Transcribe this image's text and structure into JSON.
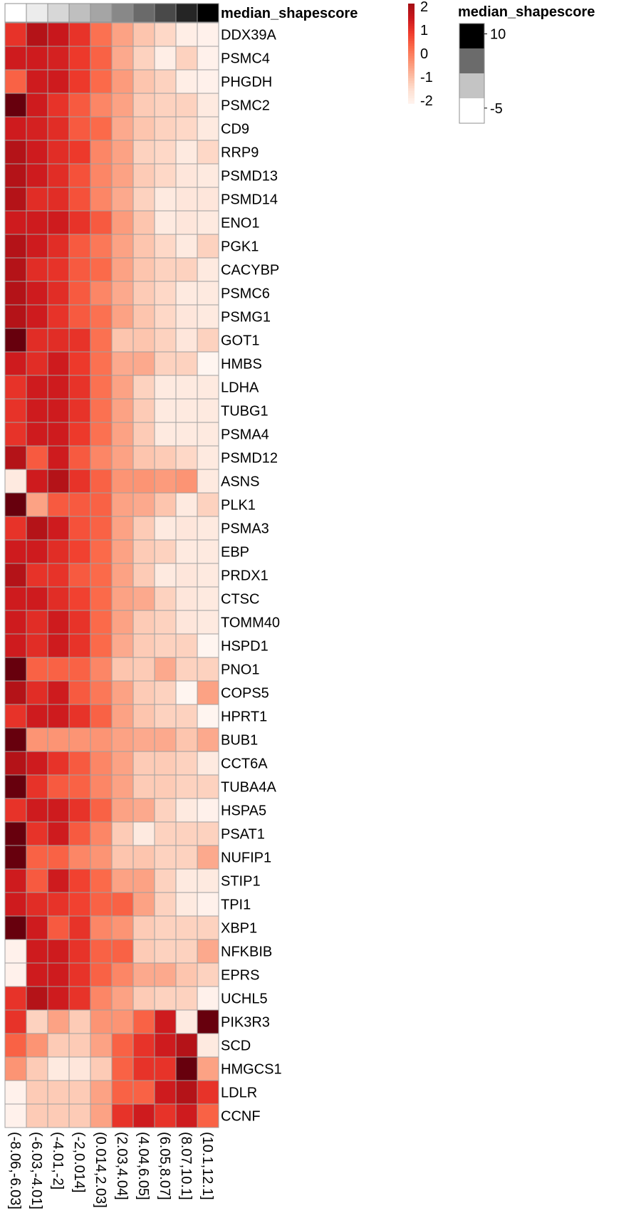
{
  "chart_data": {
    "type": "heatmap",
    "title": "",
    "xlabel": "",
    "ylabel": "",
    "columns": [
      "(-8.06,-6.03]",
      "(-6.03,-4.01]",
      "(-4.01,-2]",
      "(-2,0.014]",
      "(0.014,2.03]",
      "(2.03,4.04]",
      "(4.04,6.05]",
      "(6.05,8.07]",
      "(8.07,10.1]",
      "(10.1,12.1]"
    ],
    "rows": [
      "DDX39A",
      "PSMC4",
      "PHGDH",
      "PSMC2",
      "CD9",
      "RRP9",
      "PSMD13",
      "PSMD14",
      "ENO1",
      "PGK1",
      "CACYBP",
      "PSMC6",
      "PSMG1",
      "GOT1",
      "HMBS",
      "LDHA",
      "TUBG1",
      "PSMA4",
      "PSMD12",
      "ASNS",
      "PLK1",
      "PSMA3",
      "EBP",
      "PRDX1",
      "CTSC",
      "TOMM40",
      "HSPD1",
      "PNO1",
      "COPS5",
      "HPRT1",
      "BUB1",
      "CCT6A",
      "TUBA4A",
      "HSPA5",
      "PSAT1",
      "NUFIP1",
      "STIP1",
      "TPI1",
      "XBP1",
      "NFKBIB",
      "EPRS",
      "UCHL5",
      "PIK3R3",
      "SCD",
      "HMGCS1",
      "LDLR",
      "CCNF"
    ],
    "values": [
      [
        1.0,
        1.8,
        1.5,
        1.0,
        0.2,
        -0.5,
        -1.0,
        -1.3,
        -1.8,
        -1.9
      ],
      [
        1.4,
        1.4,
        1.3,
        0.9,
        0.4,
        -0.6,
        -1.2,
        -1.8,
        -1.2,
        -1.9
      ],
      [
        0.4,
        1.4,
        1.4,
        0.9,
        0.3,
        -0.4,
        -1.0,
        -1.2,
        -1.8,
        -1.9
      ],
      [
        2.6,
        1.4,
        1.0,
        0.5,
        -0.1,
        -0.5,
        -1.1,
        -1.2,
        -1.2,
        -1.7
      ],
      [
        1.4,
        1.3,
        1.1,
        0.5,
        0.3,
        -0.6,
        -1.0,
        -1.2,
        -1.3,
        -1.7
      ],
      [
        1.8,
        1.4,
        1.1,
        0.9,
        -0.1,
        -0.5,
        -1.2,
        -1.3,
        -1.7,
        -1.3
      ],
      [
        1.8,
        1.4,
        1.1,
        0.6,
        -0.1,
        -0.5,
        -1.1,
        -1.3,
        -1.6,
        -1.7
      ],
      [
        1.8,
        1.1,
        1.1,
        0.6,
        -0.1,
        -0.6,
        -1.2,
        -1.7,
        -1.6,
        -1.6
      ],
      [
        1.4,
        1.4,
        1.4,
        1.0,
        0.5,
        -0.4,
        -1.0,
        -1.7,
        -1.6,
        -1.7
      ],
      [
        1.8,
        1.4,
        1.1,
        0.5,
        0.1,
        -0.5,
        -1.0,
        -1.3,
        -1.7,
        -1.2
      ],
      [
        1.8,
        1.1,
        1.0,
        0.5,
        0.3,
        -0.5,
        -1.0,
        -1.2,
        -1.2,
        -1.7
      ],
      [
        1.8,
        1.4,
        1.1,
        0.5,
        -0.1,
        -0.6,
        -1.1,
        -1.3,
        -1.7,
        -1.7
      ],
      [
        1.8,
        1.4,
        1.0,
        0.5,
        0.2,
        -0.5,
        -1.0,
        -1.3,
        -1.6,
        -1.7
      ],
      [
        2.6,
        1.1,
        1.1,
        1.0,
        0.2,
        -1.0,
        -1.0,
        -1.2,
        -1.6,
        -1.2
      ],
      [
        1.4,
        1.1,
        1.4,
        0.9,
        0.2,
        -0.6,
        -0.6,
        -1.2,
        -1.2,
        -2.0
      ],
      [
        1.0,
        1.4,
        1.4,
        1.0,
        0.2,
        -0.5,
        -1.2,
        -1.7,
        -1.7,
        -1.7
      ],
      [
        1.0,
        1.4,
        1.4,
        1.0,
        0.2,
        -0.5,
        -1.1,
        -1.7,
        -1.7,
        -1.7
      ],
      [
        1.0,
        1.4,
        1.4,
        0.9,
        0.2,
        -0.5,
        -1.1,
        -1.7,
        -1.7,
        -1.7
      ],
      [
        1.8,
        0.5,
        1.4,
        0.5,
        -0.1,
        -0.5,
        -1.0,
        -1.1,
        -1.3,
        -1.7
      ],
      [
        -1.7,
        1.4,
        1.8,
        1.0,
        0.4,
        -0.3,
        -0.3,
        -0.4,
        -0.3,
        -1.7
      ],
      [
        2.6,
        -0.5,
        0.5,
        0.5,
        0.4,
        -0.5,
        -0.6,
        -1.0,
        -1.7,
        -1.2
      ],
      [
        1.0,
        1.8,
        1.4,
        0.6,
        0.4,
        -0.5,
        -1.1,
        -1.7,
        -1.6,
        -1.7
      ],
      [
        1.4,
        1.4,
        1.1,
        0.8,
        0.3,
        -0.5,
        -1.1,
        -1.2,
        -1.7,
        -1.7
      ],
      [
        1.8,
        1.0,
        1.0,
        0.5,
        0.3,
        -0.5,
        -1.1,
        -1.7,
        -1.6,
        -1.7
      ],
      [
        1.4,
        1.4,
        1.1,
        0.8,
        0.3,
        -0.5,
        -0.6,
        -1.2,
        -1.6,
        -1.7
      ],
      [
        1.4,
        1.1,
        1.4,
        1.0,
        0.3,
        -0.5,
        -1.1,
        -1.2,
        -1.6,
        -1.7
      ],
      [
        1.4,
        1.1,
        1.4,
        1.0,
        0.3,
        -0.6,
        -1.1,
        -1.2,
        -1.2,
        -2.0
      ],
      [
        2.6,
        0.4,
        0.4,
        0.4,
        -0.1,
        -1.0,
        -1.1,
        -0.6,
        -1.2,
        -1.2
      ],
      [
        1.8,
        1.1,
        1.4,
        0.5,
        0.1,
        -0.5,
        -1.1,
        -1.2,
        -2.0,
        -0.5
      ],
      [
        1.0,
        1.4,
        1.4,
        1.0,
        0.4,
        -0.5,
        -1.0,
        -1.2,
        -1.2,
        -2.0
      ],
      [
        2.6,
        -0.3,
        -0.3,
        -0.3,
        -0.3,
        -0.5,
        -0.6,
        -0.6,
        -1.0,
        -0.6
      ],
      [
        1.8,
        1.4,
        1.0,
        0.5,
        -0.1,
        -0.5,
        -1.1,
        -1.1,
        -1.2,
        -1.7
      ],
      [
        2.6,
        1.0,
        0.5,
        0.4,
        -0.1,
        -0.5,
        -1.1,
        -1.1,
        -1.2,
        -1.2
      ],
      [
        1.0,
        1.4,
        1.4,
        1.0,
        0.4,
        -0.5,
        -0.6,
        -1.2,
        -1.7,
        -1.9
      ],
      [
        2.6,
        1.0,
        1.4,
        0.5,
        -0.1,
        -1.1,
        -1.7,
        -1.2,
        -1.2,
        -1.2
      ],
      [
        2.6,
        0.4,
        0.4,
        -0.1,
        -0.3,
        -1.0,
        -1.0,
        -1.2,
        -1.2,
        -0.6
      ],
      [
        1.4,
        0.5,
        1.4,
        0.8,
        0.3,
        -0.5,
        -0.5,
        -1.2,
        -1.7,
        -1.7
      ],
      [
        1.4,
        1.1,
        1.0,
        0.8,
        0.4,
        0.4,
        -0.5,
        -1.2,
        -1.7,
        -1.9
      ],
      [
        2.6,
        1.4,
        0.5,
        1.0,
        -0.1,
        -0.3,
        -1.1,
        -1.2,
        -1.2,
        -1.2
      ],
      [
        -1.9,
        1.4,
        1.4,
        1.0,
        0.4,
        0.4,
        -1.1,
        -1.2,
        -1.2,
        -0.6
      ],
      [
        -1.9,
        1.4,
        1.4,
        1.0,
        0.4,
        -0.1,
        -0.6,
        -0.6,
        -1.0,
        -1.2
      ],
      [
        1.0,
        1.8,
        1.4,
        1.0,
        -0.1,
        -0.5,
        -1.1,
        -1.2,
        -1.2,
        -1.9
      ],
      [
        1.0,
        -1.2,
        -0.5,
        -1.1,
        -0.3,
        -0.3,
        0.4,
        1.4,
        -1.7,
        2.6
      ],
      [
        0.4,
        -0.3,
        -1.1,
        -1.1,
        -0.5,
        0.4,
        1.0,
        1.4,
        1.8,
        -1.7
      ],
      [
        -0.3,
        -1.1,
        -1.7,
        -1.6,
        -1.1,
        0.4,
        1.0,
        1.0,
        2.6,
        -0.5
      ],
      [
        -1.9,
        -1.1,
        -1.1,
        -1.1,
        -0.5,
        0.4,
        0.4,
        1.4,
        1.8,
        1.0
      ],
      [
        -1.9,
        -1.1,
        -1.1,
        -1.1,
        -0.5,
        1.0,
        1.4,
        1.0,
        1.4,
        0.4
      ]
    ],
    "color_scale": {
      "ticks": [
        2,
        1,
        0,
        -1,
        -2
      ],
      "min": -2,
      "max": 2.6,
      "colors": [
        "#fff5f0",
        "#fee0d2",
        "#fcbba1",
        "#fc9272",
        "#fb6a4a",
        "#ef3b2c",
        "#cb181d",
        "#a50f15",
        "#67000d"
      ]
    },
    "annotation": {
      "name": "median_shapescore",
      "column_colors": [
        "#ffffff",
        "#ececec",
        "#d7d7d7",
        "#bfbfbf",
        "#a5a5a5",
        "#888888",
        "#6a6a6a",
        "#494949",
        "#252525",
        "#000000"
      ],
      "legend_ticks": [
        10,
        -5
      ],
      "legend_range": [
        -8.06,
        12.1
      ],
      "legend_colors": [
        "#000000",
        "#6b6b6b",
        "#c4c4c4",
        "#ffffff"
      ]
    },
    "grid": true
  }
}
